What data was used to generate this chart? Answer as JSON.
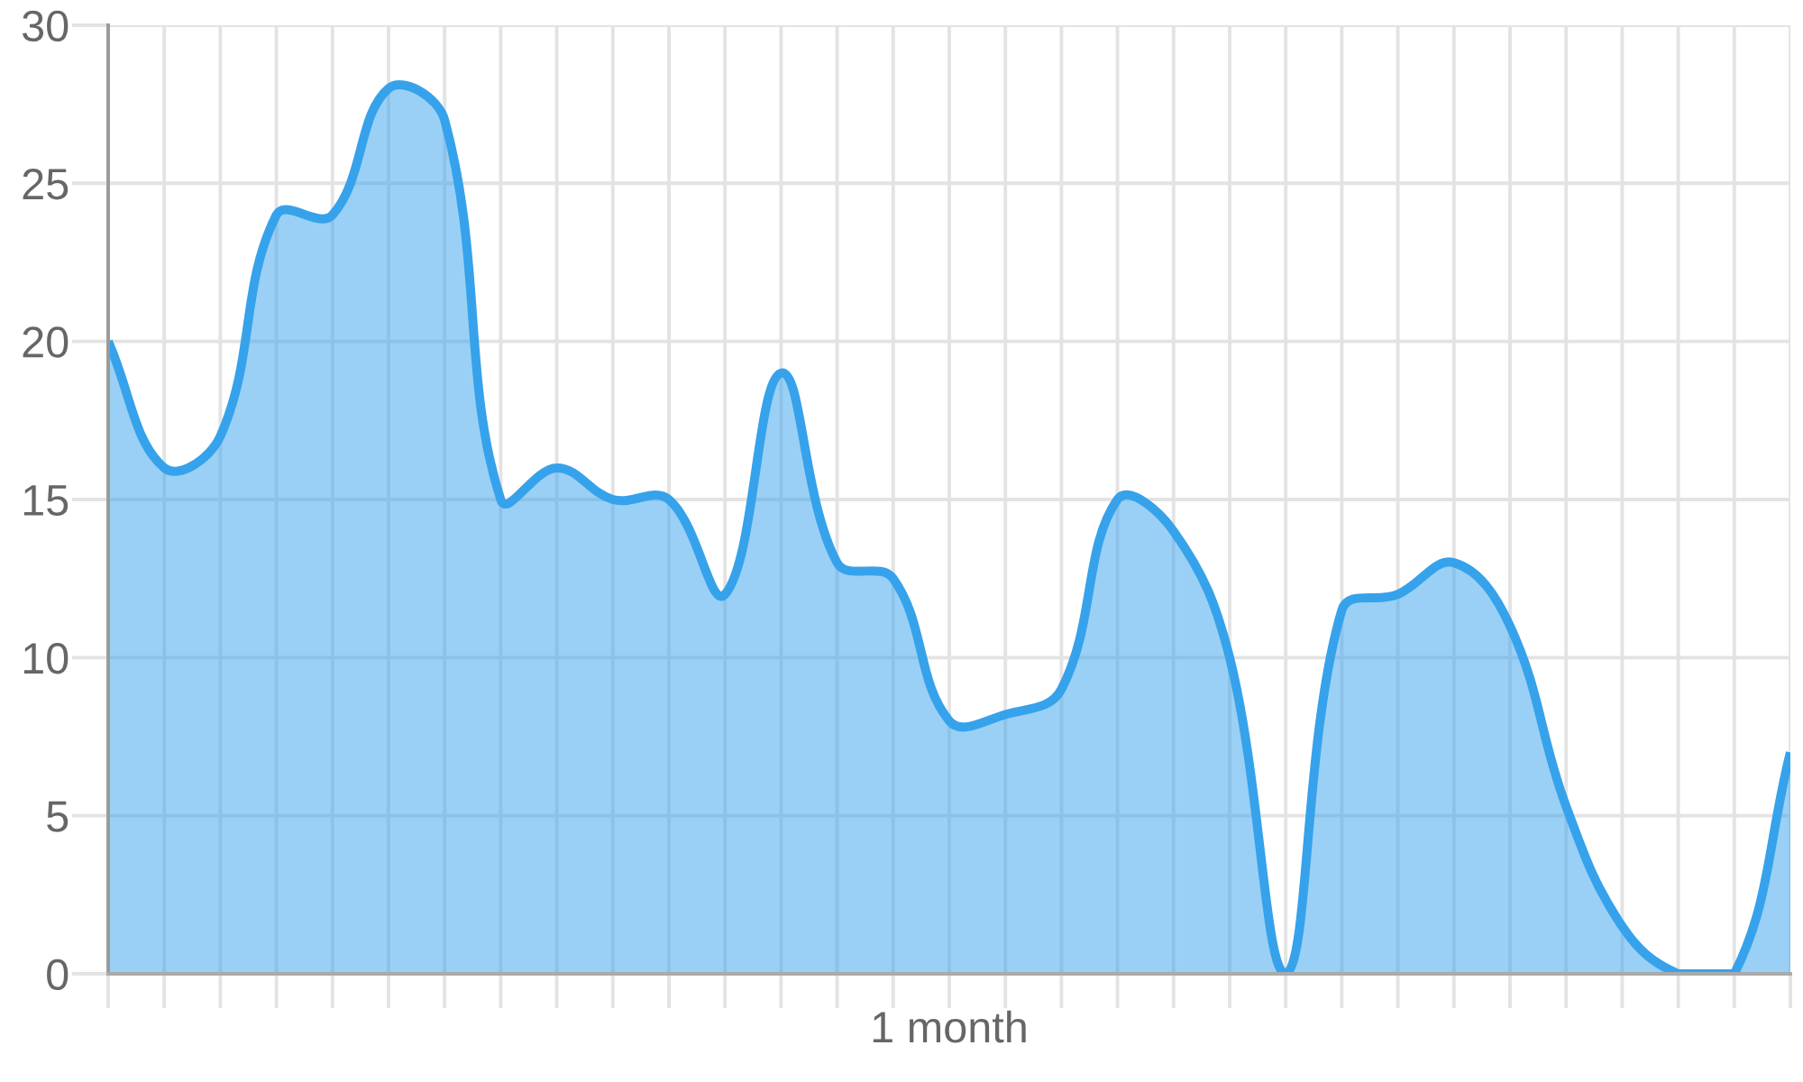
{
  "chart_data": {
    "type": "area",
    "xlabel": "1 month",
    "categories": [
      null,
      null,
      null,
      null,
      null,
      null,
      null,
      null,
      null,
      null,
      null,
      null,
      null,
      null,
      null,
      null,
      null,
      null,
      null,
      null,
      null,
      null,
      null,
      null,
      null,
      null,
      null,
      null,
      null,
      null,
      null
    ],
    "series": [
      {
        "color": "#36a2eb",
        "values": [
          20,
          16,
          17,
          24,
          24,
          28,
          27,
          15,
          16,
          15,
          15,
          12,
          19,
          13,
          12.5,
          8,
          8.2,
          9,
          15,
          14,
          10,
          0,
          11.5,
          12,
          13,
          11,
          5.3,
          1.5,
          0,
          0,
          7
        ]
      }
    ],
    "ylim": [
      0,
      30
    ],
    "yticks": [
      0,
      5,
      10,
      15,
      20,
      25,
      30
    ],
    "grid": true,
    "tick_labels": "y",
    "marker": "none",
    "line_style": "solid"
  }
}
